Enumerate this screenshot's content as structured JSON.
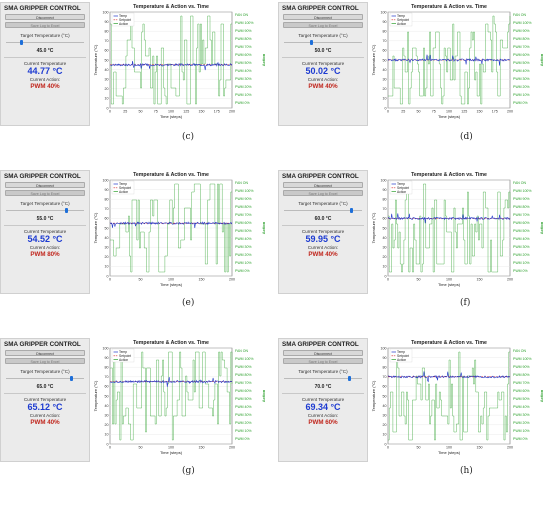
{
  "common": {
    "app_title": "SMA GRIPPER CONTROL",
    "disconnect": "Disconnect",
    "save_log": "Save Log to Excel",
    "target_label": "Target Temperature (°C)",
    "current_label": "Current Temperature",
    "action_label": "Current Action:",
    "chart_title": "Temperature & Action vs. Time",
    "ylabel": "Temperature (°C)",
    "xlabel": "Time (steps)",
    "y2label": "Action",
    "legend": [
      "Temp",
      "Setpoint",
      "Action"
    ],
    "action_ticks": [
      "FAN ON",
      "PWM 100%",
      "PWM 90%",
      "PWM 80%",
      "PWM 70%",
      "PWM 60%",
      "PWM 50%",
      "PWM 40%",
      "PWM 30%",
      "PWM 20%",
      "PWM 10%",
      "PWM 0%"
    ],
    "colors": {
      "temp": "#1f35c8",
      "setpoint": "#d62728",
      "action": "#2ca02c",
      "current": "#1d3bd1",
      "pwm": "#c0261d"
    }
  },
  "panels": [
    {
      "caption": "(c)",
      "target": "45.0 °C",
      "target_frac": 0.18,
      "current": "44.77 °C",
      "action": "PWM 40%"
    },
    {
      "caption": "(d)",
      "target": "50.0 °C",
      "target_frac": 0.35,
      "current": "50.02 °C",
      "action": "PWM 40%"
    },
    {
      "caption": "(e)",
      "target": "55.0 °C",
      "target_frac": 0.78,
      "current": "54.52 °C",
      "action": "PWM 80%"
    },
    {
      "caption": "(f)",
      "target": "60.0 °C",
      "target_frac": 0.88,
      "current": "59.95 °C",
      "action": "PWM 40%"
    },
    {
      "caption": "(g)",
      "target": "65.0 °C",
      "target_frac": 0.85,
      "current": "65.12 °C",
      "action": "PWM 40%"
    },
    {
      "caption": "(h)",
      "target": "70.0 °C",
      "target_frac": 0.85,
      "current": "69.34 °C",
      "action": "PWM 60%"
    }
  ],
  "chart_data": [
    {
      "type": "line",
      "title": "Temperature & Action vs. Time",
      "xlabel": "Time (steps)",
      "ylabel": "Temperature (°C)",
      "xlim": [
        0,
        200
      ],
      "ylim": [
        0,
        100
      ],
      "x_ticks": [
        0,
        25,
        50,
        75,
        100,
        125,
        150,
        175,
        200
      ],
      "y_ticks": [
        0,
        10,
        20,
        30,
        40,
        50,
        60,
        70,
        80,
        90,
        100
      ],
      "setpoint": 45,
      "temp_mean": 45
    },
    {
      "type": "line",
      "title": "Temperature & Action vs. Time",
      "xlabel": "Time (steps)",
      "ylabel": "Temperature (°C)",
      "xlim": [
        0,
        200
      ],
      "ylim": [
        0,
        100
      ],
      "x_ticks": [
        0,
        25,
        50,
        75,
        100,
        125,
        150,
        175,
        200
      ],
      "y_ticks": [
        0,
        10,
        20,
        30,
        40,
        50,
        60,
        70,
        80,
        90,
        100
      ],
      "setpoint": 50,
      "temp_mean": 50
    },
    {
      "type": "line",
      "title": "Temperature & Action vs. Time",
      "xlabel": "Time (steps)",
      "ylabel": "Temperature (°C)",
      "xlim": [
        0,
        200
      ],
      "ylim": [
        0,
        100
      ],
      "x_ticks": [
        0,
        50,
        100,
        150,
        200
      ],
      "y_ticks": [
        0,
        10,
        20,
        30,
        40,
        50,
        60,
        70,
        80,
        90,
        100
      ],
      "setpoint": 55,
      "temp_mean": 55
    },
    {
      "type": "line",
      "title": "Temperature & Action vs. Time",
      "xlabel": "Time (steps)",
      "ylabel": "Temperature (°C)",
      "xlim": [
        0,
        200
      ],
      "ylim": [
        0,
        100
      ],
      "x_ticks": [
        0,
        50,
        100,
        150,
        200
      ],
      "y_ticks": [
        0,
        10,
        20,
        30,
        40,
        50,
        60,
        70,
        80,
        90,
        100
      ],
      "setpoint": 60,
      "temp_mean": 60
    },
    {
      "type": "line",
      "title": "Temperature & Action vs. Time",
      "xlabel": "Time (steps)",
      "ylabel": "Temperature (°C)",
      "xlim": [
        0,
        200
      ],
      "ylim": [
        0,
        100
      ],
      "x_ticks": [
        0,
        50,
        100,
        150,
        200
      ],
      "y_ticks": [
        0,
        10,
        20,
        30,
        40,
        50,
        60,
        70,
        80,
        90,
        100
      ],
      "setpoint": 65,
      "temp_mean": 65
    },
    {
      "type": "line",
      "title": "Temperature & Action vs. Time",
      "xlabel": "Time (steps)",
      "ylabel": "Temperature (°C)",
      "xlim": [
        0,
        200
      ],
      "ylim": [
        0,
        100
      ],
      "x_ticks": [
        0,
        50,
        100,
        150,
        200
      ],
      "y_ticks": [
        0,
        10,
        20,
        30,
        40,
        50,
        60,
        70,
        80,
        90,
        100
      ],
      "setpoint": 70,
      "temp_mean": 70
    }
  ]
}
